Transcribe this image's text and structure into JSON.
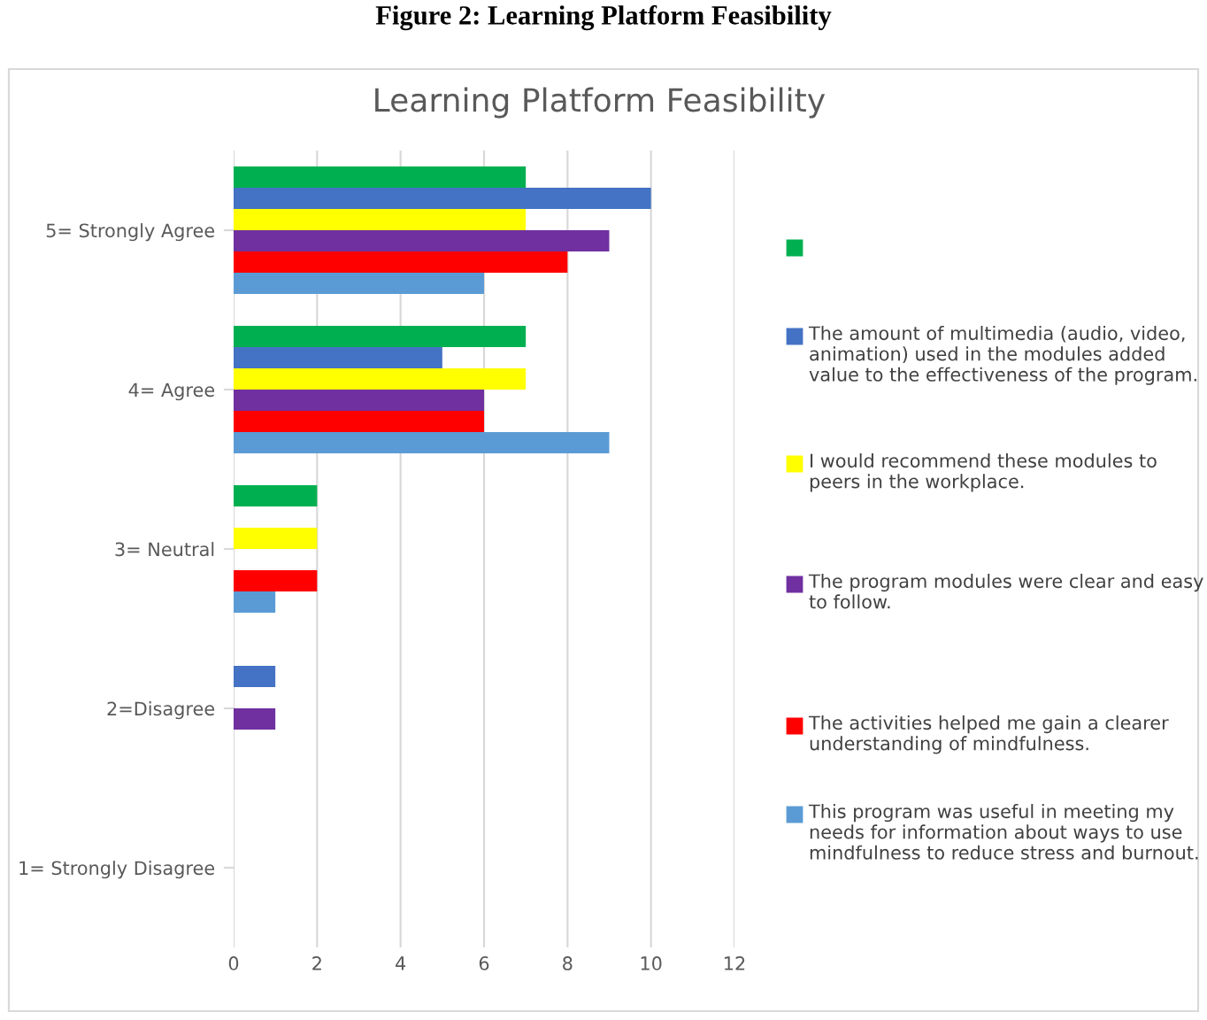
{
  "chart_data": {
    "type": "bar",
    "orientation": "horizontal",
    "title": "Learning Platform Feasibility",
    "annotations": [
      "Figure 2: Learning Platform Feasibility"
    ],
    "categories": [
      "5= Strongly Agree",
      "4= Agree",
      "3= Neutral",
      "2=Disagree",
      "1= Strongly Disagree"
    ],
    "series": [
      {
        "color": "#00b050",
        "values": [
          7,
          7,
          2,
          0,
          0
        ]
      },
      {
        "name": "The amount of multimedia (audio, video, animation) used in the modules added value to the effectiveness of the program.",
        "color": "#4472c4",
        "values": [
          10,
          5,
          0,
          1,
          0
        ]
      },
      {
        "name": "I would recommend these modules to peers in the workplace.",
        "color": "#ffff00",
        "values": [
          7,
          7,
          2,
          0,
          0
        ]
      },
      {
        "name": "The program modules were clear and easy to follow.",
        "color": "#7030a0",
        "values": [
          9,
          6,
          0,
          1,
          0
        ]
      },
      {
        "name": "The activities helped me gain a clearer understanding of mindfulness.",
        "color": "#ff0000",
        "values": [
          8,
          6,
          2,
          0,
          0
        ]
      },
      {
        "name": "This program was useful in meeting my needs for information about ways to use mindfulness to reduce stress and burnout.",
        "color": "#5b9bd5",
        "values": [
          6,
          9,
          1,
          0,
          0
        ]
      }
    ],
    "xlim": [
      0,
      12
    ],
    "xticks": [
      0,
      2,
      4,
      6,
      8,
      10,
      12
    ],
    "grid": "x",
    "legend": "right"
  }
}
